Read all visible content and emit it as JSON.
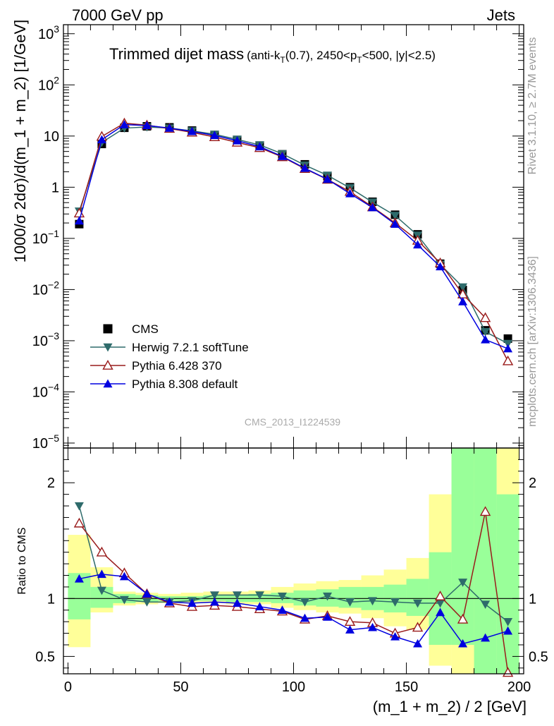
{
  "header": {
    "left": "7000 GeV pp",
    "right": "Jets"
  },
  "side_labels": {
    "upper": "Rivet 3.1.10, ≥ 2.7M events",
    "lower": "mcplots.cern.ch [arXiv:1306.3436]"
  },
  "watermark": "CMS_2013_I1224539",
  "chart_data": [
    {
      "panel": "main",
      "type": "line",
      "title": "Trimmed dijet mass",
      "cut_note": {
        "prefix": "(anti-k",
        "sub1": "T",
        "mid": "(0.7), 2450<p",
        "sub2": "T",
        "suffix": "<500, |y|<2.5)"
      },
      "ylabel": "1000/σ 2dσ)/d(m_1 + m_2) [1/GeV]",
      "yscale": "log",
      "ylim": [
        8e-06,
        1500
      ],
      "xlim": [
        -2,
        202
      ],
      "y_ticks": [
        {
          "v": 1e-05,
          "base": "10",
          "exp": "−5"
        },
        {
          "v": 0.0001,
          "base": "10",
          "exp": "−4"
        },
        {
          "v": 0.001,
          "base": "10",
          "exp": "−3"
        },
        {
          "v": 0.01,
          "base": "10",
          "exp": "−2"
        },
        {
          "v": 0.1,
          "base": "10",
          "exp": "−1"
        },
        {
          "v": 1,
          "base": "1",
          "exp": ""
        },
        {
          "v": 10,
          "base": "10",
          "exp": ""
        },
        {
          "v": 100,
          "base": "10",
          "exp": "2"
        },
        {
          "v": 1000,
          "base": "10",
          "exp": "3"
        }
      ],
      "legend_position": "bottom-left",
      "x": [
        5,
        15,
        25,
        35,
        45,
        55,
        65,
        75,
        85,
        95,
        105,
        115,
        125,
        135,
        145,
        155,
        165,
        175,
        185,
        195
      ],
      "series": [
        {
          "name": "CMS",
          "marker": "square",
          "color": "#000000",
          "values": [
            0.19,
            7.0,
            14.5,
            15.5,
            14.8,
            12.8,
            10.5,
            8.4,
            6.5,
            4.4,
            2.8,
            1.65,
            1.0,
            0.52,
            0.29,
            0.12,
            0.032,
            0.0098,
            0.0016,
            0.0011
          ]
        },
        {
          "name": "Herwig 7.2.1 softTune",
          "marker": "triangle-down",
          "color": "#2e6b6b",
          "values": [
            0.34,
            7.5,
            14.3,
            15.0,
            14.3,
            12.6,
            10.8,
            8.6,
            6.7,
            4.5,
            2.7,
            1.71,
            0.97,
            0.51,
            0.28,
            0.115,
            0.031,
            0.0112,
            0.0015,
            0.00088
          ]
        },
        {
          "name": "Pythia 6.428 370",
          "marker": "triangle-up-open",
          "color": "#991b1b",
          "values": [
            0.31,
            9.8,
            17.8,
            16.3,
            14.0,
            11.8,
            9.6,
            7.5,
            5.9,
            3.9,
            2.3,
            1.42,
            0.82,
            0.41,
            0.2,
            0.091,
            0.033,
            0.0081,
            0.0028,
            0.0004
          ]
        },
        {
          "name": "Pythia 8.308 default",
          "marker": "triangle-up",
          "color": "#0000e0",
          "values": [
            0.22,
            8.5,
            16.7,
            16.1,
            14.3,
            12.3,
            10.3,
            8.1,
            6.2,
            4.0,
            2.35,
            1.43,
            0.75,
            0.4,
            0.19,
            0.075,
            0.028,
            0.0058,
            0.00105,
            0.0007
          ]
        }
      ]
    },
    {
      "panel": "ratio",
      "type": "line",
      "ylabel": "Ratio to CMS",
      "xlabel": "(m_1 + m_2) / 2 [GeV]",
      "ylim": [
        0.35,
        2.3
      ],
      "xlim": [
        -2,
        202
      ],
      "y_ticks": [
        0.5,
        1,
        2
      ],
      "x_ticks": [
        0,
        50,
        100,
        150,
        200
      ],
      "x": [
        5,
        15,
        25,
        35,
        45,
        55,
        65,
        75,
        85,
        95,
        105,
        115,
        125,
        135,
        145,
        155,
        165,
        175,
        185,
        195
      ],
      "band_edges": [
        0,
        10,
        20,
        30,
        40,
        50,
        60,
        70,
        80,
        90,
        100,
        110,
        120,
        130,
        140,
        150,
        160,
        170,
        180,
        190,
        200
      ],
      "band_inner": [
        [
          0.82,
          1.22
        ],
        [
          0.92,
          1.1
        ],
        [
          0.96,
          1.04
        ],
        [
          0.97,
          1.03
        ],
        [
          0.98,
          1.02
        ],
        [
          0.98,
          1.02
        ],
        [
          0.98,
          1.03
        ],
        [
          0.97,
          1.03
        ],
        [
          0.97,
          1.04
        ],
        [
          0.96,
          1.05
        ],
        [
          0.94,
          1.07
        ],
        [
          0.93,
          1.08
        ],
        [
          0.92,
          1.1
        ],
        [
          0.9,
          1.1
        ],
        [
          0.88,
          1.12
        ],
        [
          0.85,
          1.17
        ],
        [
          0.6,
          1.4
        ],
        [
          0.6,
          2.3
        ],
        [
          0.35,
          2.3
        ],
        [
          0.35,
          1.9
        ]
      ],
      "band_outer": [
        [
          0.58,
          1.55
        ],
        [
          0.88,
          1.27
        ],
        [
          0.94,
          1.06
        ],
        [
          0.95,
          1.05
        ],
        [
          0.96,
          1.04
        ],
        [
          0.96,
          1.05
        ],
        [
          0.96,
          1.06
        ],
        [
          0.95,
          1.06
        ],
        [
          0.95,
          1.07
        ],
        [
          0.92,
          1.1
        ],
        [
          0.9,
          1.13
        ],
        [
          0.88,
          1.15
        ],
        [
          0.87,
          1.16
        ],
        [
          0.83,
          1.2
        ],
        [
          0.76,
          1.25
        ],
        [
          0.73,
          1.35
        ],
        [
          0.42,
          1.9
        ],
        [
          0.35,
          2.3
        ],
        [
          0.35,
          2.3
        ],
        [
          0.35,
          2.3
        ]
      ],
      "series": [
        {
          "name": "Herwig 7.2.1 softTune",
          "marker": "triangle-down",
          "color": "#2e6b6b",
          "values": [
            1.8,
            1.07,
            0.99,
            0.97,
            0.97,
            0.98,
            1.03,
            1.03,
            1.03,
            1.02,
            0.97,
            1.02,
            0.97,
            0.98,
            0.97,
            0.96,
            0.96,
            1.14,
            0.95,
            0.8
          ]
        },
        {
          "name": "Pythia 6.428 370",
          "marker": "triangle-up-open",
          "color": "#991b1b",
          "values": [
            1.65,
            1.4,
            1.22,
            1.04,
            0.96,
            0.93,
            0.94,
            0.93,
            0.91,
            0.89,
            0.82,
            0.85,
            0.8,
            0.79,
            0.7,
            0.75,
            1.02,
            0.82,
            1.75,
            0.36
          ]
        },
        {
          "name": "Pythia 8.308 default",
          "marker": "triangle-up",
          "color": "#0000e0",
          "values": [
            1.17,
            1.21,
            1.19,
            1.04,
            0.97,
            0.96,
            0.97,
            0.96,
            0.93,
            0.9,
            0.83,
            0.84,
            0.73,
            0.75,
            0.67,
            0.61,
            0.88,
            0.61,
            0.66,
            0.72
          ]
        }
      ]
    }
  ]
}
